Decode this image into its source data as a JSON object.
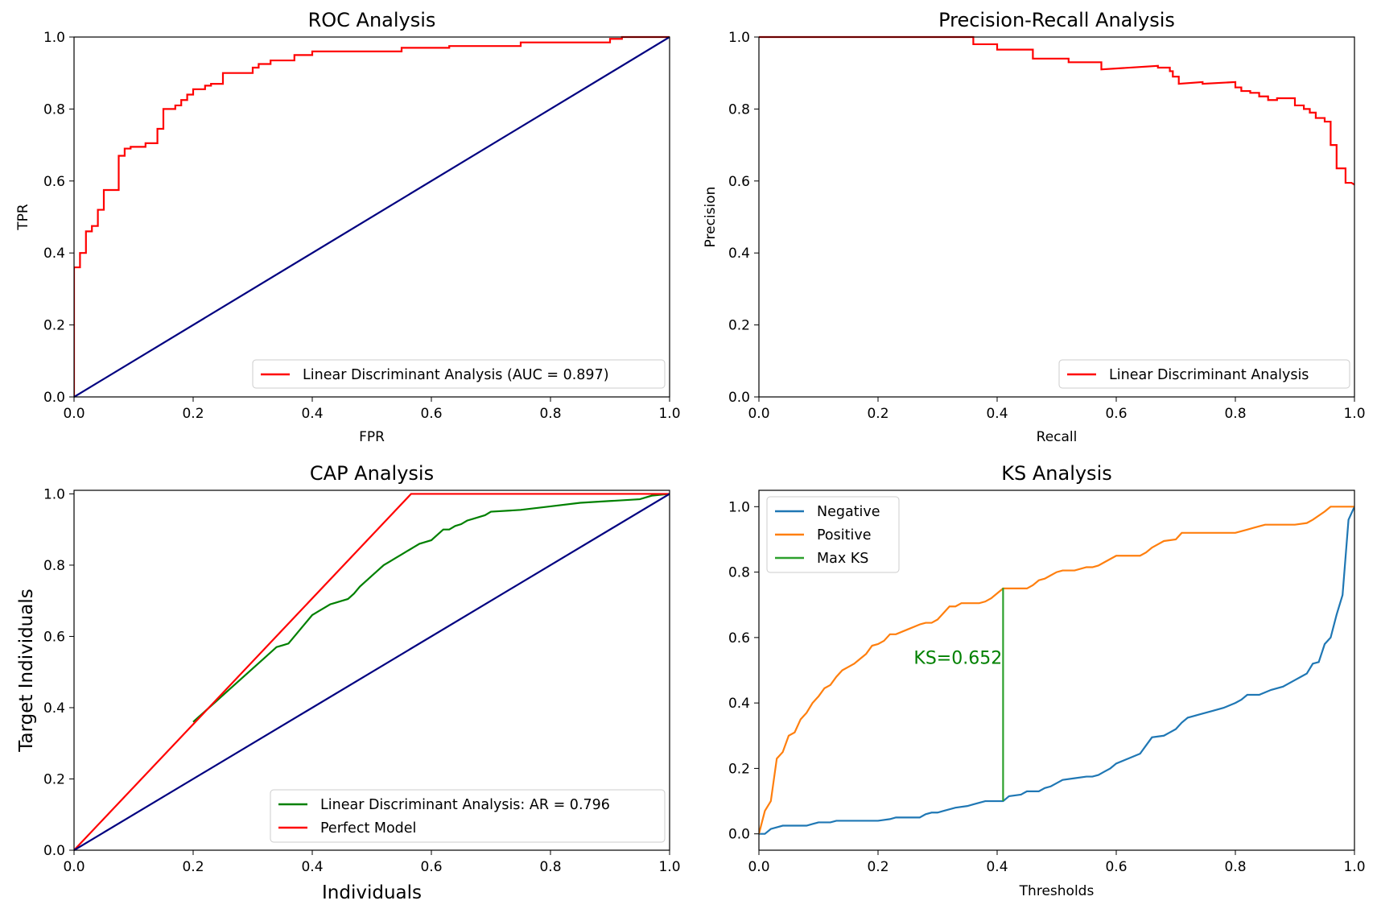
{
  "chart_data": [
    {
      "id": "roc",
      "type": "line",
      "title": "ROC Analysis",
      "xlabel": "FPR",
      "ylabel": "TPR",
      "xlim": [
        0,
        1
      ],
      "ylim": [
        0,
        1
      ],
      "xticks": [
        "0.0",
        "0.2",
        "0.4",
        "0.6",
        "0.8",
        "1.0"
      ],
      "yticks": [
        "0.0",
        "0.2",
        "0.4",
        "0.6",
        "0.8",
        "1.0"
      ],
      "legend_position": "lower-right",
      "series": [
        {
          "name": "Linear Discriminant Analysis (AUC = 0.897)",
          "color": "#ff0000",
          "step": true,
          "x": [
            0,
            0,
            0.01,
            0.01,
            0.02,
            0.02,
            0.03,
            0.03,
            0.04,
            0.04,
            0.05,
            0.05,
            0.06,
            0.06,
            0.075,
            0.075,
            0.085,
            0.085,
            0.095,
            0.095,
            0.12,
            0.12,
            0.14,
            0.14,
            0.15,
            0.15,
            0.17,
            0.17,
            0.18,
            0.18,
            0.19,
            0.19,
            0.2,
            0.2,
            0.22,
            0.22,
            0.23,
            0.23,
            0.25,
            0.25,
            0.3,
            0.3,
            0.31,
            0.31,
            0.33,
            0.33,
            0.37,
            0.37,
            0.4,
            0.4,
            0.55,
            0.55,
            0.63,
            0.63,
            0.75,
            0.75,
            0.9,
            0.9,
            0.92,
            0.92,
            1.0
          ],
          "y": [
            0,
            0.36,
            0.36,
            0.4,
            0.4,
            0.46,
            0.46,
            0.475,
            0.475,
            0.52,
            0.52,
            0.575,
            0.575,
            0.575,
            0.575,
            0.67,
            0.67,
            0.69,
            0.69,
            0.695,
            0.695,
            0.705,
            0.705,
            0.745,
            0.745,
            0.8,
            0.8,
            0.81,
            0.81,
            0.825,
            0.825,
            0.84,
            0.84,
            0.855,
            0.855,
            0.865,
            0.865,
            0.87,
            0.87,
            0.9,
            0.9,
            0.915,
            0.915,
            0.925,
            0.925,
            0.935,
            0.935,
            0.95,
            0.95,
            0.96,
            0.96,
            0.97,
            0.97,
            0.975,
            0.975,
            0.985,
            0.985,
            0.995,
            0.995,
            1.0,
            1.0
          ]
        },
        {
          "name": "",
          "color": "#000080",
          "x": [
            0,
            1
          ],
          "y": [
            0,
            1
          ]
        }
      ]
    },
    {
      "id": "pr",
      "type": "line",
      "title": "Precision-Recall Analysis",
      "xlabel": "Recall",
      "ylabel": "Precision",
      "xlim": [
        0,
        1
      ],
      "ylim": [
        0,
        1
      ],
      "xticks": [
        "0.0",
        "0.2",
        "0.4",
        "0.6",
        "0.8",
        "1.0"
      ],
      "yticks": [
        "0.0",
        "0.2",
        "0.4",
        "0.6",
        "0.8",
        "1.0"
      ],
      "legend_position": "lower-right",
      "series": [
        {
          "name": "Linear Discriminant Analysis",
          "color": "#ff0000",
          "step": true,
          "x": [
            0,
            0.36,
            0.36,
            0.4,
            0.4,
            0.46,
            0.46,
            0.52,
            0.52,
            0.575,
            0.575,
            0.67,
            0.67,
            0.69,
            0.69,
            0.695,
            0.695,
            0.705,
            0.705,
            0.745,
            0.745,
            0.8,
            0.8,
            0.81,
            0.81,
            0.825,
            0.825,
            0.84,
            0.84,
            0.855,
            0.855,
            0.87,
            0.87,
            0.9,
            0.9,
            0.915,
            0.915,
            0.925,
            0.925,
            0.935,
            0.935,
            0.95,
            0.95,
            0.96,
            0.96,
            0.97,
            0.97,
            0.985,
            0.985,
            0.995,
            1.0
          ],
          "y": [
            1.0,
            1.0,
            0.98,
            0.98,
            0.965,
            0.965,
            0.94,
            0.94,
            0.93,
            0.93,
            0.91,
            0.92,
            0.915,
            0.915,
            0.905,
            0.905,
            0.89,
            0.89,
            0.87,
            0.875,
            0.87,
            0.875,
            0.86,
            0.86,
            0.85,
            0.85,
            0.845,
            0.845,
            0.835,
            0.835,
            0.825,
            0.825,
            0.83,
            0.83,
            0.81,
            0.81,
            0.8,
            0.8,
            0.79,
            0.79,
            0.775,
            0.775,
            0.765,
            0.765,
            0.7,
            0.7,
            0.635,
            0.635,
            0.595,
            0.595,
            0.59
          ]
        }
      ]
    },
    {
      "id": "cap",
      "type": "line",
      "title": "CAP Analysis",
      "xlabel": "Individuals",
      "ylabel": "Target Individuals",
      "xlim": [
        0,
        1
      ],
      "ylim": [
        0,
        1.01
      ],
      "xticks": [
        "0.0",
        "0.2",
        "0.4",
        "0.6",
        "0.8",
        "1.0"
      ],
      "yticks": [
        "0.0",
        "0.2",
        "0.4",
        "0.6",
        "0.8",
        "1.0"
      ],
      "legend_position": "lower-right",
      "series": [
        {
          "name": "Linear Discriminant Analysis: AR = 0.796",
          "color": "#008000",
          "x": [
            0.2,
            0.22,
            0.24,
            0.26,
            0.28,
            0.3,
            0.32,
            0.34,
            0.35,
            0.36,
            0.38,
            0.4,
            0.41,
            0.42,
            0.43,
            0.44,
            0.45,
            0.46,
            0.47,
            0.48,
            0.5,
            0.52,
            0.53,
            0.54,
            0.55,
            0.56,
            0.57,
            0.58,
            0.59,
            0.6,
            0.61,
            0.62,
            0.63,
            0.64,
            0.65,
            0.66,
            0.67,
            0.68,
            0.69,
            0.7,
            0.75,
            0.8,
            0.85,
            0.9,
            0.95,
            0.97,
            1.0
          ],
          "y": [
            0.36,
            0.39,
            0.42,
            0.45,
            0.48,
            0.51,
            0.54,
            0.57,
            0.575,
            0.58,
            0.62,
            0.66,
            0.67,
            0.68,
            0.69,
            0.695,
            0.7,
            0.705,
            0.72,
            0.74,
            0.77,
            0.8,
            0.81,
            0.82,
            0.83,
            0.84,
            0.85,
            0.86,
            0.865,
            0.87,
            0.885,
            0.9,
            0.9,
            0.91,
            0.915,
            0.925,
            0.93,
            0.935,
            0.94,
            0.95,
            0.955,
            0.965,
            0.975,
            0.98,
            0.985,
            0.995,
            1.0
          ]
        },
        {
          "name": "Perfect Model",
          "color": "#ff0000",
          "x": [
            0,
            0.566,
            1.0
          ],
          "y": [
            0,
            1.0,
            1.0
          ]
        },
        {
          "name": "",
          "color": "#000080",
          "x": [
            0,
            1
          ],
          "y": [
            0,
            1
          ]
        }
      ]
    },
    {
      "id": "ks",
      "type": "line",
      "title": "KS Analysis",
      "xlabel": "Thresholds",
      "ylabel": "",
      "xlim": [
        0,
        1
      ],
      "ylim": [
        -0.05,
        1.05
      ],
      "xticks": [
        "0.0",
        "0.2",
        "0.4",
        "0.6",
        "0.8",
        "1.0"
      ],
      "yticks": [
        "0.0",
        "0.2",
        "0.4",
        "0.6",
        "0.8",
        "1.0"
      ],
      "legend_position": "upper-left",
      "annotation": {
        "text": "KS=0.652",
        "x": 0.26,
        "y": 0.52,
        "color": "#008000"
      },
      "series": [
        {
          "name": "Negative",
          "color": "#1f77b4",
          "x": [
            0,
            0.01,
            0.02,
            0.03,
            0.04,
            0.05,
            0.06,
            0.07,
            0.08,
            0.09,
            0.1,
            0.11,
            0.12,
            0.13,
            0.15,
            0.2,
            0.22,
            0.23,
            0.27,
            0.28,
            0.29,
            0.3,
            0.31,
            0.33,
            0.35,
            0.36,
            0.37,
            0.38,
            0.39,
            0.4,
            0.41,
            0.42,
            0.44,
            0.45,
            0.47,
            0.48,
            0.49,
            0.5,
            0.51,
            0.53,
            0.55,
            0.56,
            0.57,
            0.58,
            0.59,
            0.6,
            0.62,
            0.64,
            0.65,
            0.66,
            0.68,
            0.69,
            0.7,
            0.71,
            0.72,
            0.74,
            0.76,
            0.78,
            0.8,
            0.81,
            0.82,
            0.84,
            0.86,
            0.88,
            0.9,
            0.91,
            0.92,
            0.93,
            0.94,
            0.95,
            0.96,
            0.97,
            0.98,
            0.99,
            1.0
          ],
          "y": [
            0,
            0,
            0.015,
            0.02,
            0.025,
            0.025,
            0.025,
            0.025,
            0.025,
            0.03,
            0.035,
            0.035,
            0.035,
            0.04,
            0.04,
            0.04,
            0.045,
            0.05,
            0.05,
            0.06,
            0.065,
            0.065,
            0.07,
            0.08,
            0.085,
            0.09,
            0.095,
            0.1,
            0.1,
            0.1,
            0.1,
            0.115,
            0.12,
            0.13,
            0.13,
            0.14,
            0.145,
            0.155,
            0.165,
            0.17,
            0.175,
            0.175,
            0.18,
            0.19,
            0.2,
            0.215,
            0.23,
            0.245,
            0.27,
            0.295,
            0.3,
            0.31,
            0.32,
            0.34,
            0.355,
            0.365,
            0.375,
            0.385,
            0.4,
            0.41,
            0.425,
            0.425,
            0.44,
            0.45,
            0.47,
            0.48,
            0.49,
            0.52,
            0.525,
            0.58,
            0.6,
            0.67,
            0.73,
            0.96,
            1.0
          ]
        },
        {
          "name": "Positive",
          "color": "#ff7f0e",
          "x": [
            0,
            0.01,
            0.02,
            0.03,
            0.04,
            0.05,
            0.06,
            0.07,
            0.08,
            0.09,
            0.1,
            0.11,
            0.12,
            0.13,
            0.14,
            0.15,
            0.16,
            0.17,
            0.18,
            0.19,
            0.2,
            0.21,
            0.22,
            0.23,
            0.25,
            0.27,
            0.28,
            0.29,
            0.3,
            0.31,
            0.32,
            0.33,
            0.34,
            0.35,
            0.36,
            0.37,
            0.38,
            0.39,
            0.4,
            0.41,
            0.45,
            0.46,
            0.47,
            0.48,
            0.49,
            0.5,
            0.51,
            0.53,
            0.55,
            0.56,
            0.57,
            0.58,
            0.6,
            0.62,
            0.64,
            0.65,
            0.66,
            0.67,
            0.68,
            0.7,
            0.71,
            0.75,
            0.8,
            0.82,
            0.83,
            0.84,
            0.85,
            0.88,
            0.9,
            0.92,
            0.93,
            0.95,
            0.96,
            1.0
          ],
          "y": [
            0,
            0.07,
            0.1,
            0.23,
            0.25,
            0.3,
            0.31,
            0.35,
            0.37,
            0.4,
            0.42,
            0.445,
            0.455,
            0.48,
            0.5,
            0.51,
            0.52,
            0.535,
            0.55,
            0.575,
            0.58,
            0.59,
            0.61,
            0.61,
            0.625,
            0.64,
            0.645,
            0.645,
            0.655,
            0.675,
            0.695,
            0.695,
            0.705,
            0.705,
            0.705,
            0.705,
            0.71,
            0.72,
            0.735,
            0.75,
            0.75,
            0.76,
            0.775,
            0.78,
            0.79,
            0.8,
            0.805,
            0.805,
            0.815,
            0.815,
            0.82,
            0.83,
            0.85,
            0.85,
            0.85,
            0.86,
            0.875,
            0.885,
            0.895,
            0.9,
            0.92,
            0.92,
            0.92,
            0.93,
            0.935,
            0.94,
            0.945,
            0.945,
            0.945,
            0.95,
            0.96,
            0.985,
            1.0,
            1.0
          ]
        },
        {
          "name": "Max KS",
          "color": "#2ca02c",
          "x": [
            0.41,
            0.41
          ],
          "y": [
            0.1,
            0.752
          ]
        }
      ]
    }
  ]
}
